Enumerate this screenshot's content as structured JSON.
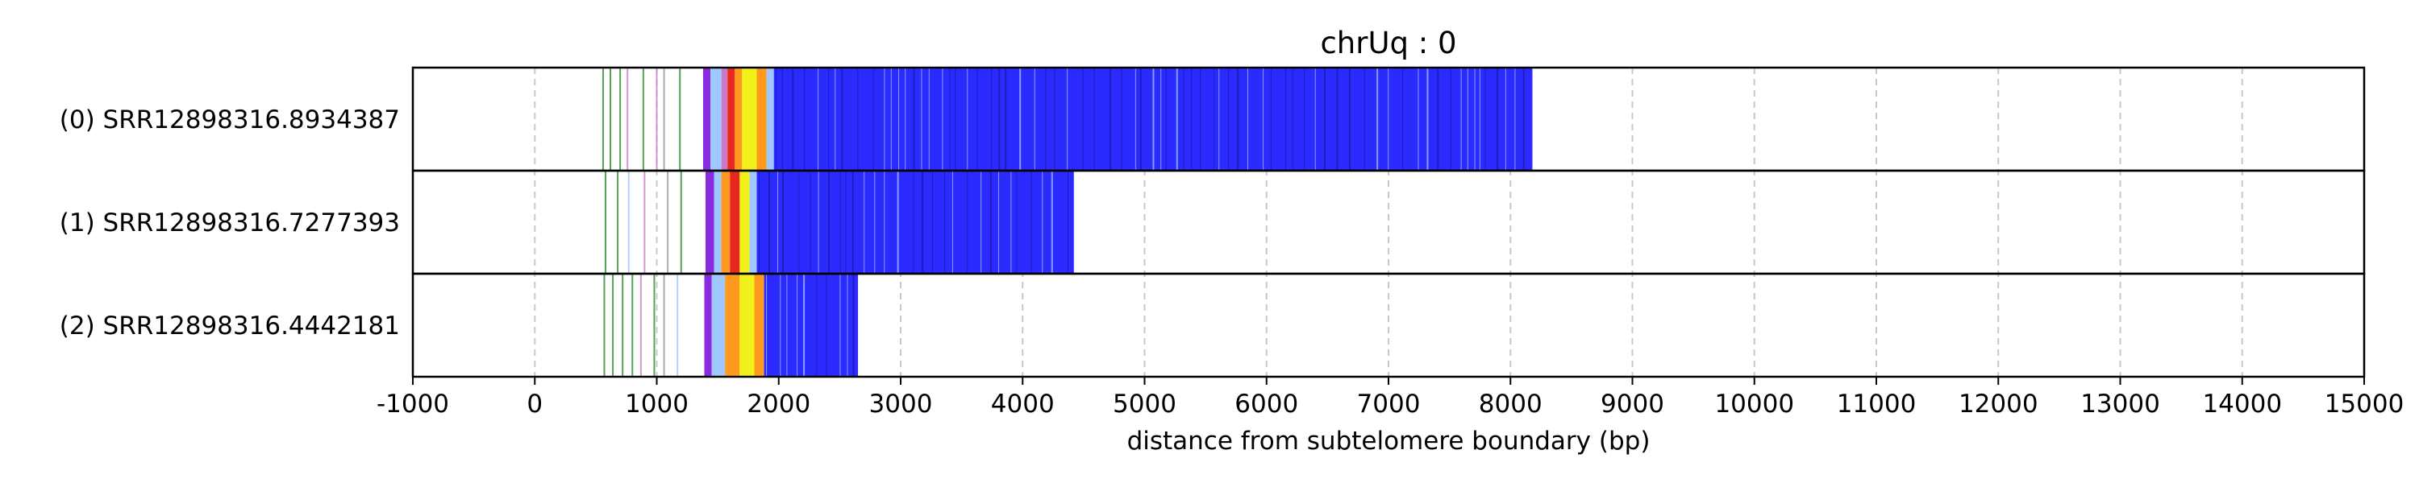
{
  "chart_data": {
    "type": "bar",
    "title": "chrUq : 0",
    "xlabel": "distance from subtelomere boundary (bp)",
    "ylabel": "",
    "xlim": [
      -1000,
      15000
    ],
    "grid": "vertical dashed",
    "x_ticks": [
      -1000,
      0,
      1000,
      2000,
      3000,
      4000,
      5000,
      6000,
      7000,
      8000,
      9000,
      10000,
      11000,
      12000,
      13000,
      14000,
      15000
    ],
    "tick_labels": [
      "-1000",
      "0",
      "1000",
      "2000",
      "3000",
      "4000",
      "5000",
      "6000",
      "7000",
      "8000",
      "9000",
      "10000",
      "11000",
      "12000",
      "13000",
      "14000",
      "15000"
    ],
    "colors": {
      "tvr_blue": "#2b2bff",
      "light_blue": "#9fc8ff",
      "purple": "#8a2be2",
      "red": "#e8281e",
      "orange": "#ff9a1f",
      "yellow": "#f2f21a",
      "green": "#2e8b2e",
      "pink": "#c87ac8",
      "grey": "#999999"
    },
    "reads": [
      {
        "label": "(0) SRR12898316.8934387",
        "start": 560,
        "end": 8180,
        "lines": [
          {
            "x": 560,
            "c": "green"
          },
          {
            "x": 620,
            "c": "green"
          },
          {
            "x": 700,
            "c": "green"
          },
          {
            "x": 760,
            "c": "pink"
          },
          {
            "x": 890,
            "c": "green"
          },
          {
            "x": 1000,
            "c": "pink"
          },
          {
            "x": 1060,
            "c": "grey"
          },
          {
            "x": 1190,
            "c": "green"
          }
        ],
        "segments": [
          {
            "x0": 1380,
            "x1": 1440,
            "c": "purple"
          },
          {
            "x0": 1440,
            "x1": 1530,
            "c": "light_blue"
          },
          {
            "x0": 1530,
            "x1": 1580,
            "c": "pink"
          },
          {
            "x0": 1580,
            "x1": 1640,
            "c": "red"
          },
          {
            "x0": 1640,
            "x1": 1700,
            "c": "orange"
          },
          {
            "x0": 1700,
            "x1": 1820,
            "c": "yellow"
          },
          {
            "x0": 1820,
            "x1": 1900,
            "c": "orange"
          },
          {
            "x0": 1900,
            "x1": 1960,
            "c": "light_blue"
          },
          {
            "x0": 1960,
            "x1": 8180,
            "c": "tvr_blue"
          }
        ]
      },
      {
        "label": "(1) SRR12898316.7277393",
        "start": 580,
        "end": 4420,
        "lines": [
          {
            "x": 580,
            "c": "green"
          },
          {
            "x": 680,
            "c": "green"
          },
          {
            "x": 770,
            "c": "light_blue"
          },
          {
            "x": 900,
            "c": "pink"
          },
          {
            "x": 1090,
            "c": "grey"
          },
          {
            "x": 1200,
            "c": "green"
          }
        ],
        "segments": [
          {
            "x0": 1400,
            "x1": 1470,
            "c": "purple"
          },
          {
            "x0": 1470,
            "x1": 1530,
            "c": "light_blue"
          },
          {
            "x0": 1530,
            "x1": 1600,
            "c": "orange"
          },
          {
            "x0": 1600,
            "x1": 1680,
            "c": "red"
          },
          {
            "x0": 1680,
            "x1": 1760,
            "c": "yellow"
          },
          {
            "x0": 1760,
            "x1": 1820,
            "c": "light_blue"
          },
          {
            "x0": 1820,
            "x1": 4420,
            "c": "tvr_blue"
          }
        ]
      },
      {
        "label": "(2) SRR12898316.4442181",
        "start": 570,
        "end": 2650,
        "lines": [
          {
            "x": 570,
            "c": "green"
          },
          {
            "x": 640,
            "c": "green"
          },
          {
            "x": 720,
            "c": "green"
          },
          {
            "x": 800,
            "c": "green"
          },
          {
            "x": 870,
            "c": "pink"
          },
          {
            "x": 980,
            "c": "green"
          },
          {
            "x": 1060,
            "c": "grey"
          },
          {
            "x": 1170,
            "c": "light_blue"
          }
        ],
        "segments": [
          {
            "x0": 1390,
            "x1": 1450,
            "c": "purple"
          },
          {
            "x0": 1450,
            "x1": 1560,
            "c": "light_blue"
          },
          {
            "x0": 1560,
            "x1": 1680,
            "c": "orange"
          },
          {
            "x0": 1680,
            "x1": 1800,
            "c": "yellow"
          },
          {
            "x0": 1800,
            "x1": 1880,
            "c": "orange"
          },
          {
            "x0": 1880,
            "x1": 2650,
            "c": "tvr_blue"
          }
        ]
      }
    ]
  }
}
